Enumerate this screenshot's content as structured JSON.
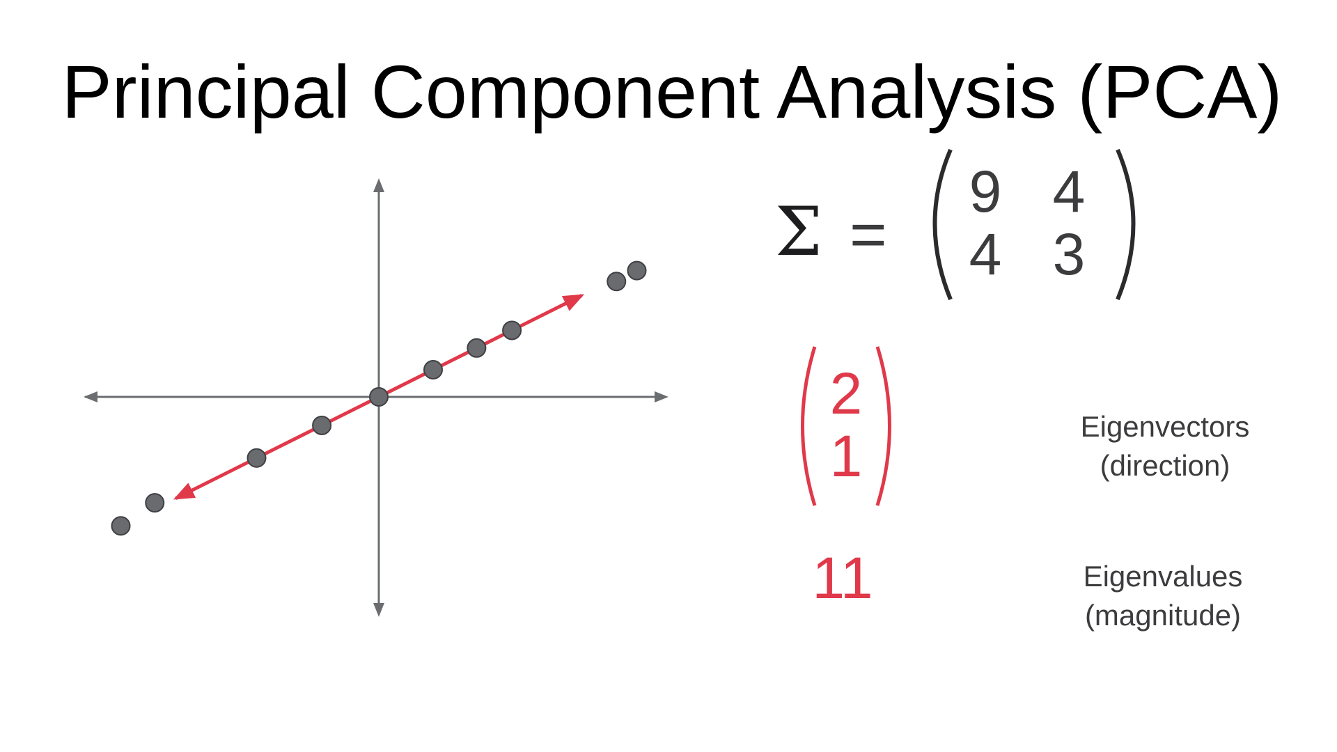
{
  "title": "Principal Component Analysis (PCA)",
  "plot": {
    "axis_color": "#6b6d70",
    "point_color": "#696b6e",
    "line_color": "#e0394a",
    "points": [
      [
        -1.9,
        -0.95
      ],
      [
        -1.65,
        -0.78
      ],
      [
        -0.9,
        -0.45
      ],
      [
        -0.42,
        -0.21
      ],
      [
        0.0,
        0.0
      ],
      [
        0.4,
        0.2
      ],
      [
        0.72,
        0.36
      ],
      [
        0.98,
        0.49
      ],
      [
        1.75,
        0.85
      ],
      [
        1.9,
        0.93
      ]
    ],
    "principal_direction": [
      2,
      1
    ]
  },
  "covariance": {
    "symbol": "Σ",
    "equals": "=",
    "matrix": [
      [
        "9",
        "4"
      ],
      [
        "4",
        "3"
      ]
    ]
  },
  "eigenvector": {
    "values": [
      "2",
      "1"
    ],
    "color": "#e0394a",
    "label_line1": "Eigenvectors",
    "label_line2": "(direction)"
  },
  "eigenvalue": {
    "value": "11",
    "color": "#e0394a",
    "label_line1": "Eigenvalues",
    "label_line2": "(magnitude)"
  }
}
